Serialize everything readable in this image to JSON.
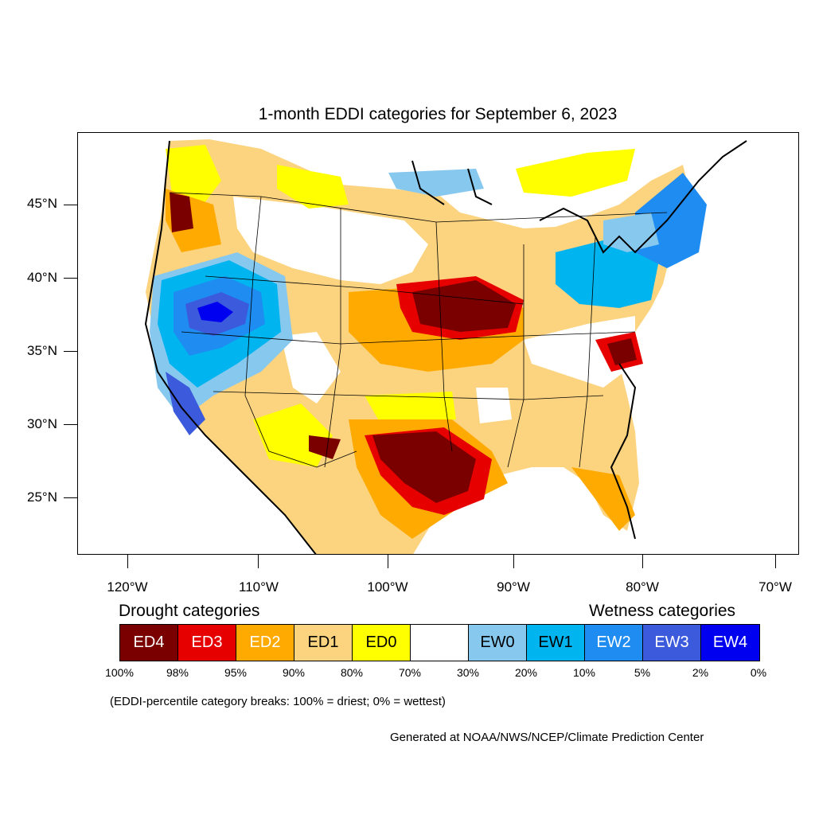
{
  "title": "1-month EDDI categories for September 6, 2023",
  "lat_labels": [
    "45°N",
    "40°N",
    "35°N",
    "30°N",
    "25°N"
  ],
  "lon_labels": [
    "120°W",
    "110°W",
    "100°W",
    "90°W",
    "80°W",
    "70°W"
  ],
  "legend": {
    "drought_heading": "Drought categories",
    "wetness_heading": "Wetness categories",
    "categories": [
      {
        "label": "ED4",
        "color": "#7a0000",
        "text_color": "#ffffff"
      },
      {
        "label": "ED3",
        "color": "#e60000",
        "text_color": "#ffffff"
      },
      {
        "label": "ED2",
        "color": "#ffaa00",
        "text_color": "#ffffff"
      },
      {
        "label": "ED1",
        "color": "#fcd37f",
        "text_color": "#000000"
      },
      {
        "label": "ED0",
        "color": "#ffff00",
        "text_color": "#000000"
      },
      {
        "label": "",
        "color": "#ffffff",
        "text_color": "#000000"
      },
      {
        "label": "EW0",
        "color": "#87c8ef",
        "text_color": "#000000"
      },
      {
        "label": "EW1",
        "color": "#00b4f0",
        "text_color": "#000000"
      },
      {
        "label": "EW2",
        "color": "#1e8cf0",
        "text_color": "#ffffff"
      },
      {
        "label": "EW3",
        "color": "#3c5adc",
        "text_color": "#ffffff"
      },
      {
        "label": "EW4",
        "color": "#0000f0",
        "text_color": "#ffffff"
      }
    ],
    "percentiles": [
      "100%",
      "98%",
      "95%",
      "90%",
      "80%",
      "70%",
      "30%",
      "20%",
      "10%",
      "5%",
      "2%",
      "0%"
    ]
  },
  "note": "(EDDI-percentile category breaks: 100% = driest; 0% = wettest)",
  "credit": "Generated at NOAA/NWS/NCEP/Climate Prediction Center"
}
